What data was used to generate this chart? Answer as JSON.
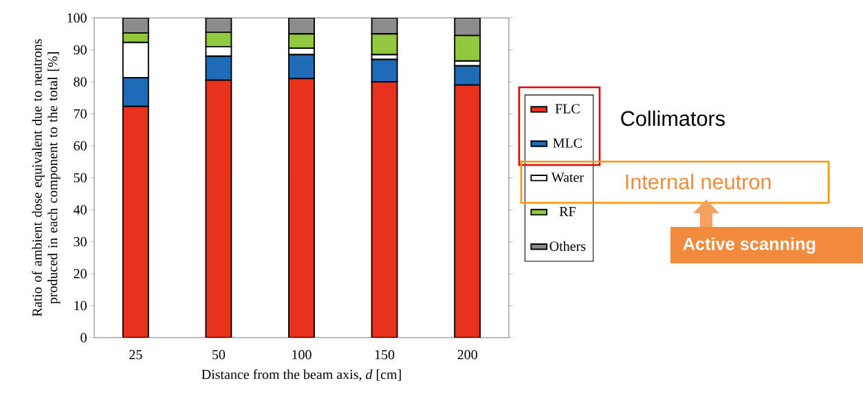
{
  "chart_data": {
    "type": "bar",
    "stacked": true,
    "ylabel": "Ratio of ambient dose equivalent due to neutrons produced in each component to the total [%]",
    "xlabel": "Distance from the beam axis, *d* [cm]",
    "categories": [
      "25",
      "50",
      "100",
      "150",
      "200"
    ],
    "series": [
      {
        "name": "FLC",
        "color": "#e8321e",
        "values": [
          72.3,
          80.5,
          81,
          80,
          79
        ]
      },
      {
        "name": "MLC",
        "color": "#1f6bb8",
        "values": [
          9,
          7.5,
          7.5,
          7,
          6
        ]
      },
      {
        "name": "Water",
        "color": "#ffffff",
        "values": [
          11,
          3,
          2,
          1.5,
          1.5
        ]
      },
      {
        "name": "RF",
        "color": "#92c83e",
        "values": [
          3,
          4.5,
          4.5,
          6.5,
          8
        ]
      },
      {
        "name": "Others",
        "color": "#8c8c8c",
        "values": [
          4.7,
          4.5,
          5,
          5,
          5.5
        ]
      }
    ],
    "ylim": [
      0,
      100
    ],
    "yticks": [
      0,
      10,
      20,
      30,
      40,
      50,
      60,
      70,
      80,
      90,
      100
    ],
    "legend": "right",
    "grid": false,
    "annotations": [
      "Collimators",
      "Internal neutron",
      "Active scanning"
    ]
  }
}
